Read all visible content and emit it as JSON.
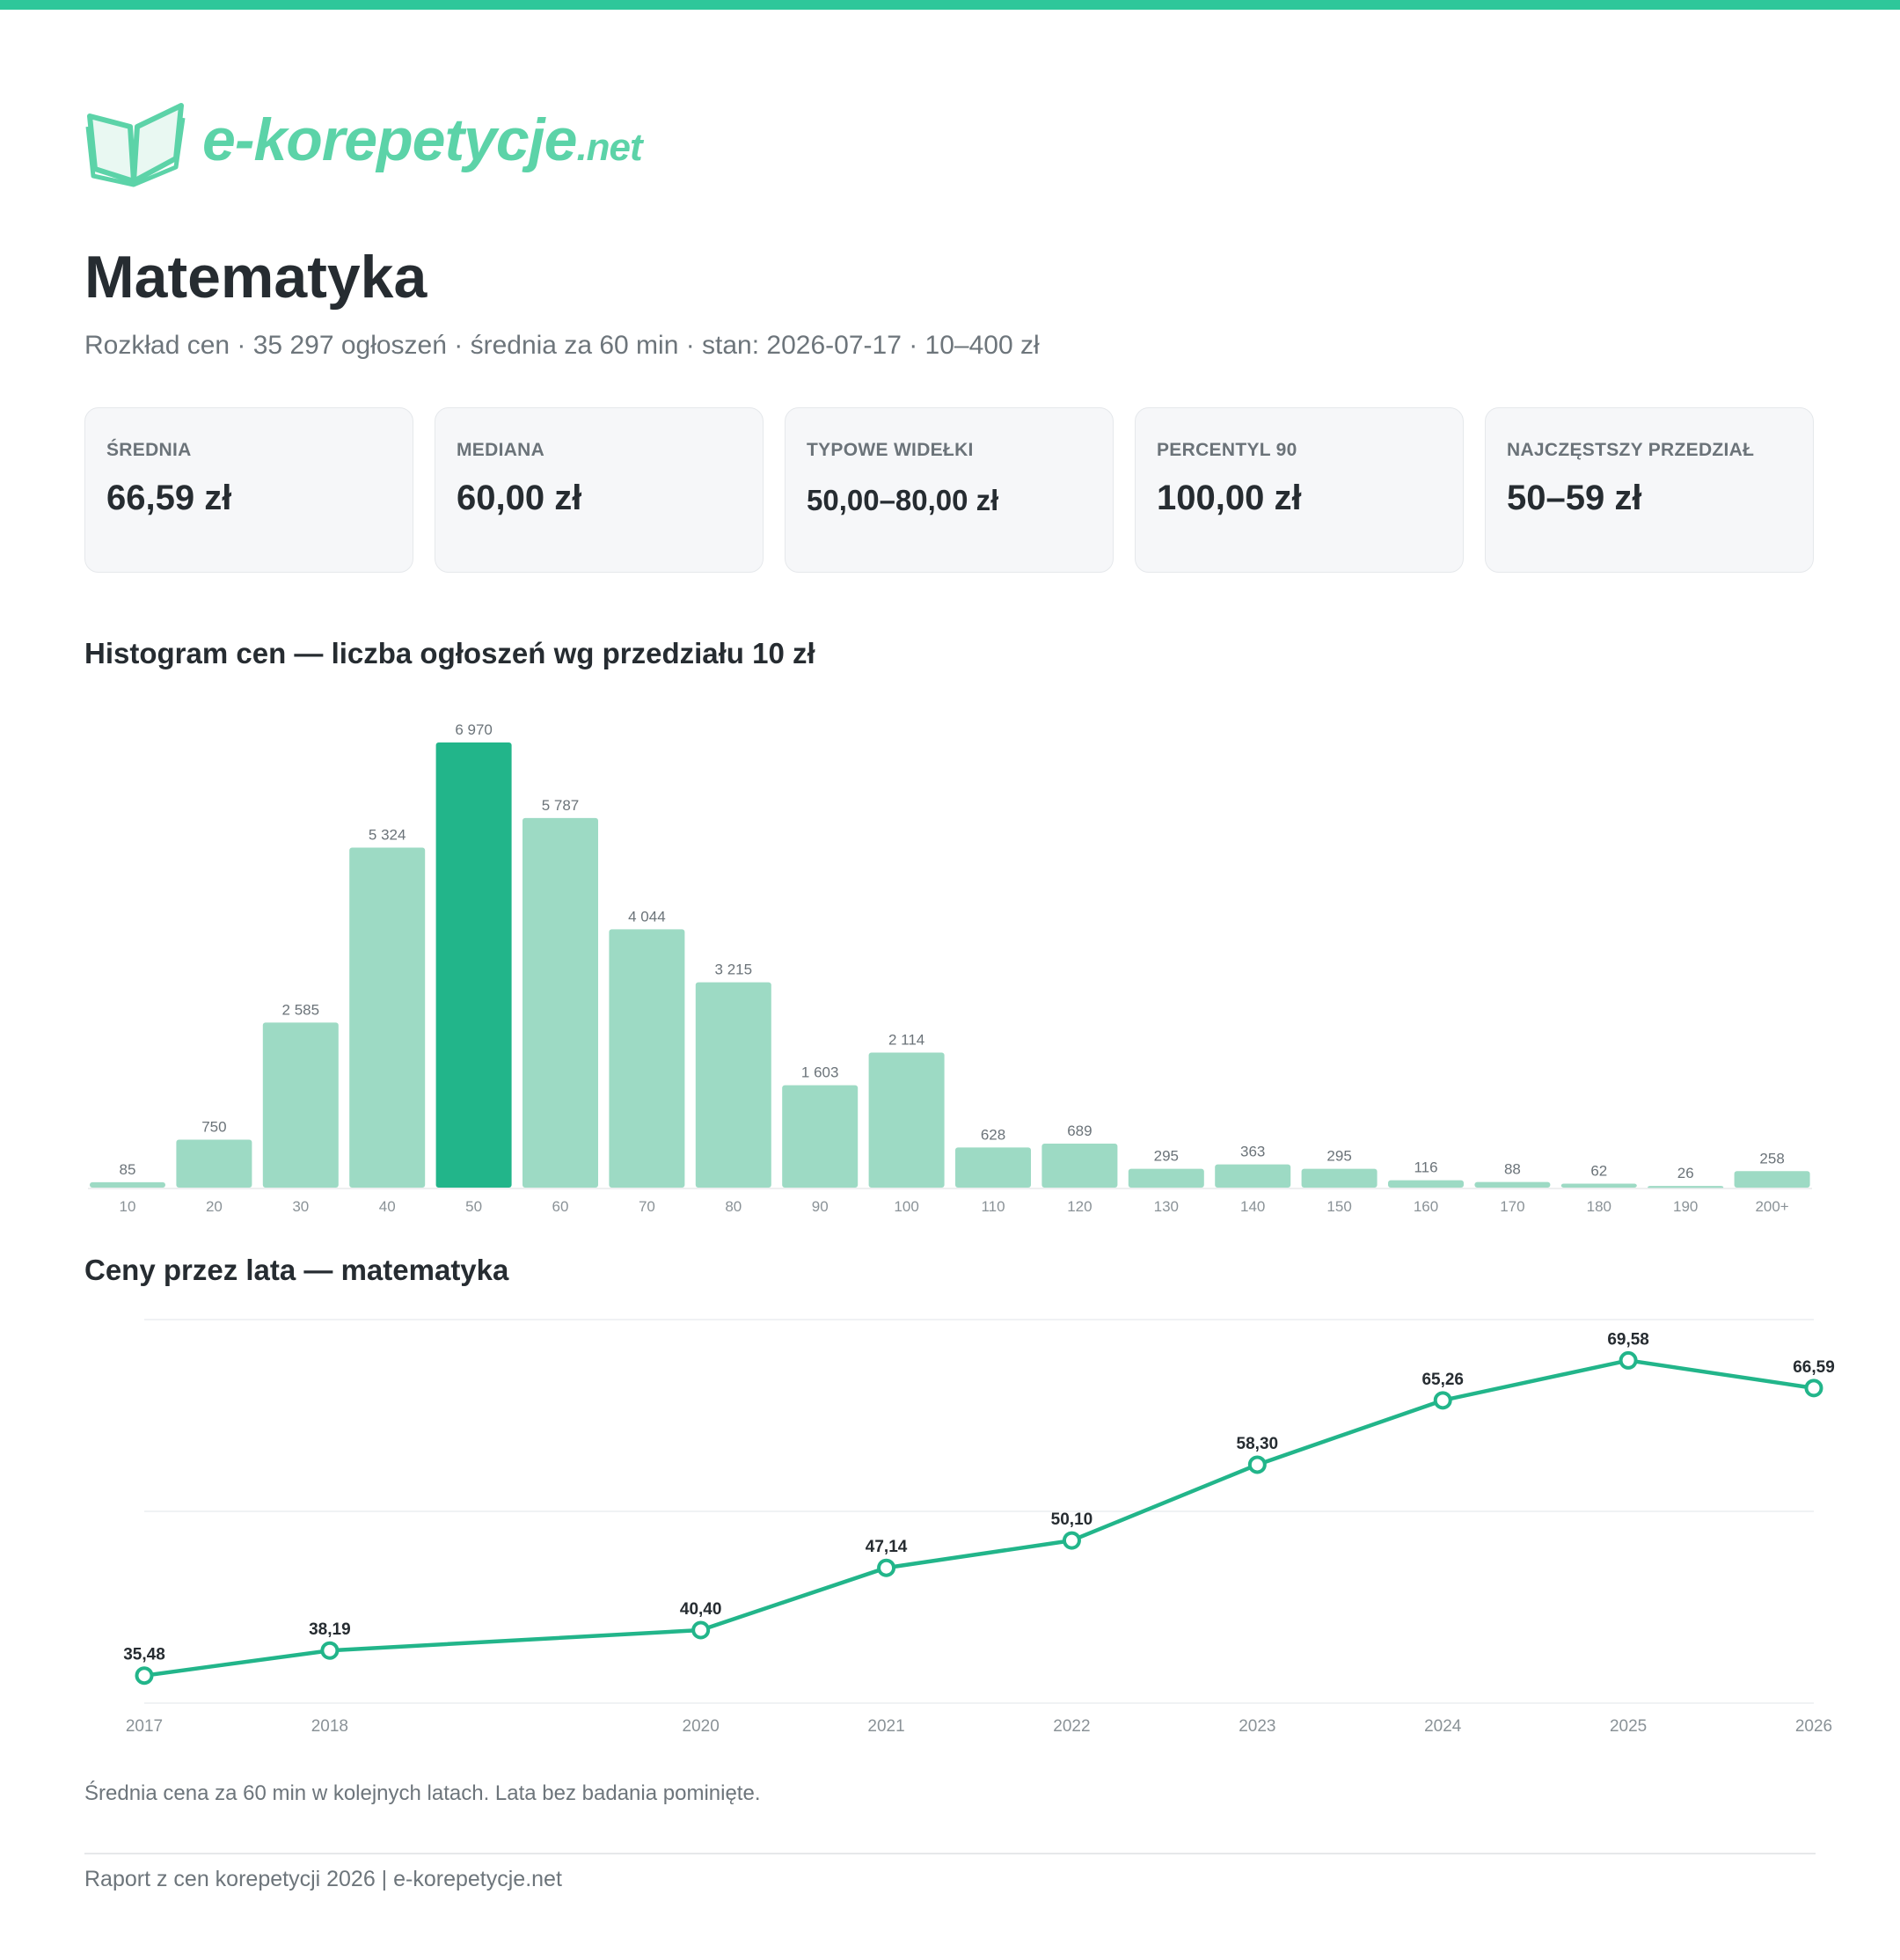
{
  "brand": {
    "name": "e-korepetycje",
    "tld": ".net"
  },
  "header": {
    "title": "Matematyka",
    "subtitle": "Rozkład cen · 35 297 ogłoszeń · średnia za 60 min · stan: 2026-07-17 · 10–400 zł"
  },
  "stats": [
    {
      "label": "ŚREDNIA",
      "value": "66,59 zł"
    },
    {
      "label": "MEDIANA",
      "value": "60,00 zł"
    },
    {
      "label": "TYPOWE WIDEŁKI",
      "value": "50,00–80,00 zł"
    },
    {
      "label": "PERCENTYL 90",
      "value": "100,00 zł"
    },
    {
      "label": "NAJCZĘSTSZY PRZEDZIAŁ",
      "value": "50–59 zł"
    }
  ],
  "colors": {
    "accent": "#22b58a",
    "bar": "#9ddac4",
    "top_bar": "#2ec79a"
  },
  "chart_data": [
    {
      "type": "bar",
      "title": "Histogram cen — liczba ogłoszeń wg przedziału 10 zł",
      "categories": [
        "10",
        "20",
        "30",
        "40",
        "50",
        "60",
        "70",
        "80",
        "90",
        "100",
        "110",
        "120",
        "130",
        "140",
        "150",
        "160",
        "170",
        "180",
        "190",
        "200+"
      ],
      "values": [
        85,
        750,
        2585,
        5324,
        6970,
        5787,
        4044,
        3215,
        1603,
        2114,
        628,
        689,
        295,
        363,
        295,
        116,
        88,
        62,
        26,
        258
      ],
      "value_labels": [
        "85",
        "750",
        "2 585",
        "5 324",
        "6 970",
        "5 787",
        "4 044",
        "3 215",
        "1 603",
        "2 114",
        "628",
        "689",
        "295",
        "363",
        "295",
        "116",
        "88",
        "62",
        "26",
        "258"
      ],
      "highlight_index": 4,
      "ylim": [
        0,
        6970
      ]
    },
    {
      "type": "line",
      "title": "Ceny przez lata — matematyka",
      "x": [
        2017,
        2018,
        2020,
        2021,
        2022,
        2023,
        2024,
        2025,
        2026
      ],
      "values": [
        35.48,
        38.19,
        40.4,
        47.14,
        50.1,
        58.3,
        65.26,
        69.58,
        66.59
      ],
      "value_labels": [
        "35,48",
        "38,19",
        "40,40",
        "47,14",
        "50,10",
        "58,30",
        "65,26",
        "69,58",
        "66,59"
      ],
      "ylim": [
        32.5,
        74.0
      ],
      "grid": true
    }
  ],
  "note": "Średnia cena za 60 min w kolejnych latach. Lata bez badania pominięte.",
  "footer": "Raport z cen korepetycji 2026 | e-korepetycje.net"
}
